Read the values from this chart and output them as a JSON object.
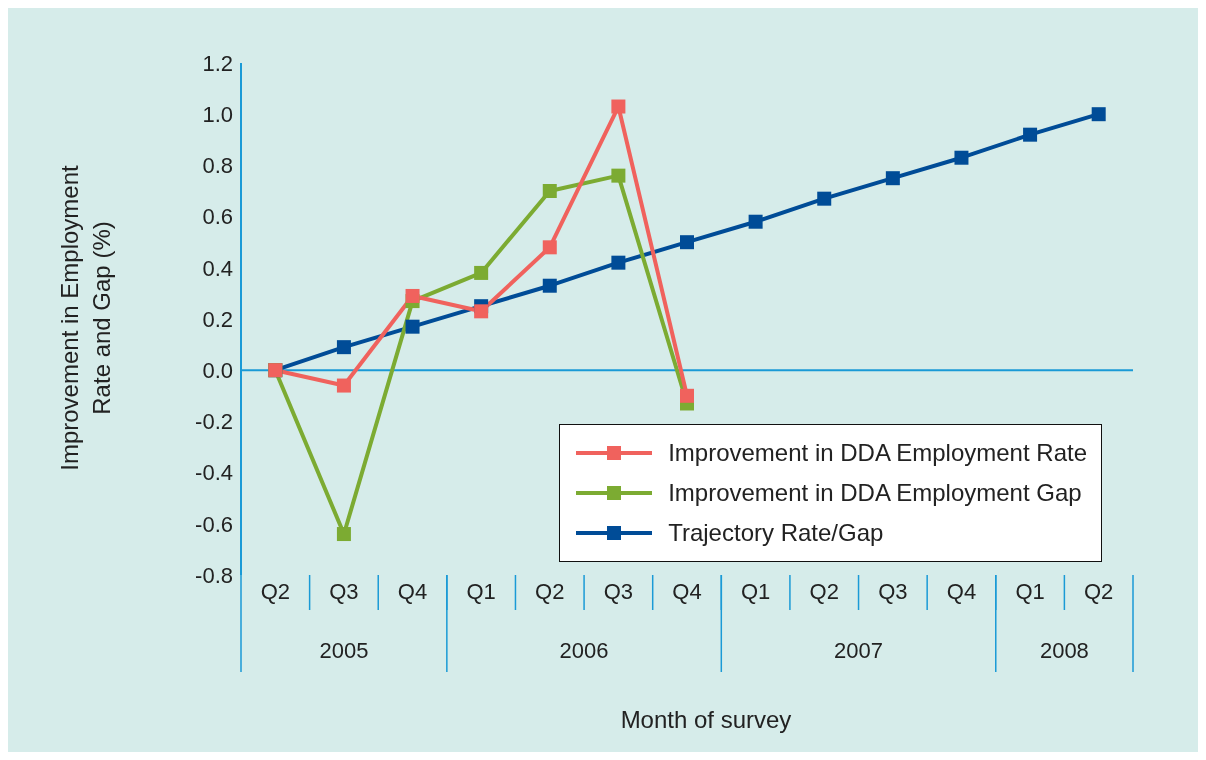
{
  "chart_data": {
    "type": "line",
    "xlabel": "Month of survey",
    "ylabel": "Improvement in Employment Rate and Gap (%)",
    "categories": [
      "Q2",
      "Q3",
      "Q4",
      "Q1",
      "Q2",
      "Q3",
      "Q4",
      "Q1",
      "Q2",
      "Q3",
      "Q4",
      "Q1",
      "Q2"
    ],
    "annotations": [
      "2005",
      "2006",
      "2007",
      "2008"
    ],
    "series": [
      {
        "name": "Improvement in DDA Employment Rate",
        "color": "#f0625d",
        "values": [
          0.0,
          -0.06,
          0.29,
          0.23,
          0.48,
          1.03,
          -0.1,
          null,
          null,
          null,
          null,
          null,
          null
        ]
      },
      {
        "name": "Improvement in DDA Employment Gap",
        "color": "#7cab32",
        "values": [
          0.0,
          -0.64,
          0.27,
          0.38,
          0.7,
          0.76,
          -0.13,
          null,
          null,
          null,
          null,
          null,
          null
        ]
      },
      {
        "name": "Trajectory Rate/Gap",
        "color": "#004c97",
        "values": [
          0.0,
          0.09,
          0.17,
          0.25,
          0.33,
          0.42,
          0.5,
          0.58,
          0.67,
          0.75,
          0.83,
          0.92,
          1.0
        ]
      }
    ],
    "ylim": [
      -0.8,
      1.2
    ],
    "yticks": [
      {
        "value": -0.8,
        "label": "-0.8"
      },
      {
        "value": -0.6,
        "label": "-0.6"
      },
      {
        "value": -0.4,
        "label": "-0.4"
      },
      {
        "value": -0.2,
        "label": "-0.2"
      },
      {
        "value": 0,
        "label": "0.0"
      },
      {
        "value": 0.2,
        "label": "0.2"
      },
      {
        "value": 0.4,
        "label": "0.4"
      },
      {
        "value": 0.6,
        "label": "0.6"
      },
      {
        "value": 0.8,
        "label": "0.8"
      },
      {
        "value": 1,
        "label": "1.0"
      },
      {
        "value": 1.2,
        "label": "1.2"
      }
    ],
    "ref_lines": [
      {
        "axis": "y",
        "value": 0,
        "color": "#1a9ad6"
      }
    ],
    "marker": "square",
    "line_style": "solid",
    "legend": "bottom right",
    "grid": false
  }
}
